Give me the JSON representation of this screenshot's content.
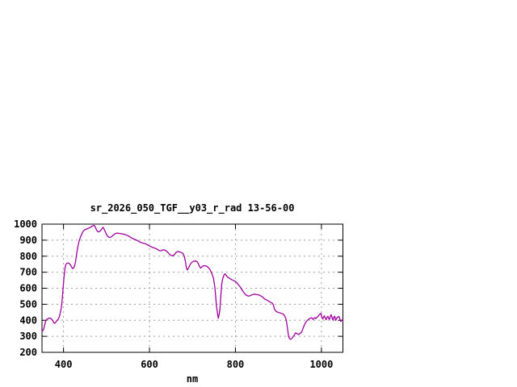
{
  "chart_data": {
    "type": "line",
    "title": "sr_2026_050_TGF__y03_r_rad 13-56-00",
    "xlabel": "nm",
    "ylabel": "",
    "xlim": [
      350,
      1050
    ],
    "ylim": [
      200,
      1000
    ],
    "xticks": [
      400,
      600,
      800,
      1000
    ],
    "yticks": [
      200,
      300,
      400,
      500,
      600,
      700,
      800,
      900,
      1000
    ],
    "grid": true,
    "legend": "none",
    "colors": {
      "line": "#a000a0",
      "grid": "#a0a0a0",
      "axis": "#000000",
      "background": "#ffffff",
      "text": "#000000"
    },
    "series": [
      {
        "name": "sr_2026_050_TGF__y03_r_rad",
        "color": "#a000a0",
        "points": [
          [
            350,
            330
          ],
          [
            352,
            337
          ],
          [
            354,
            345
          ],
          [
            356,
            368
          ],
          [
            358,
            392
          ],
          [
            360,
            403
          ],
          [
            363,
            409
          ],
          [
            366,
            413
          ],
          [
            369,
            414
          ],
          [
            372,
            408
          ],
          [
            375,
            398
          ],
          [
            377,
            386
          ],
          [
            379,
            381
          ],
          [
            381,
            384
          ],
          [
            384,
            396
          ],
          [
            387,
            404
          ],
          [
            390,
            420
          ],
          [
            393,
            452
          ],
          [
            395,
            478
          ],
          [
            397,
            528
          ],
          [
            399,
            600
          ],
          [
            401,
            662
          ],
          [
            403,
            716
          ],
          [
            405,
            746
          ],
          [
            408,
            756
          ],
          [
            411,
            758
          ],
          [
            413,
            755
          ],
          [
            416,
            747
          ],
          [
            419,
            732
          ],
          [
            421,
            723
          ],
          [
            424,
            728
          ],
          [
            426,
            741
          ],
          [
            428,
            764
          ],
          [
            430,
            806
          ],
          [
            433,
            856
          ],
          [
            436,
            892
          ],
          [
            439,
            916
          ],
          [
            442,
            936
          ],
          [
            445,
            952
          ],
          [
            448,
            962
          ],
          [
            451,
            967
          ],
          [
            454,
            970
          ],
          [
            457,
            973
          ],
          [
            460,
            977
          ],
          [
            463,
            981
          ],
          [
            466,
            986
          ],
          [
            469,
            991
          ],
          [
            471,
            992
          ],
          [
            473,
            987
          ],
          [
            476,
            970
          ],
          [
            478,
            958
          ],
          [
            481,
            951
          ],
          [
            484,
            954
          ],
          [
            487,
            963
          ],
          [
            490,
            974
          ],
          [
            492,
            980
          ],
          [
            494,
            972
          ],
          [
            496,
            960
          ],
          [
            498,
            948
          ],
          [
            500,
            935
          ],
          [
            503,
            924
          ],
          [
            506,
            918
          ],
          [
            509,
            917
          ],
          [
            512,
            922
          ],
          [
            515,
            929
          ],
          [
            518,
            937
          ],
          [
            521,
            941
          ],
          [
            524,
            944
          ],
          [
            527,
            943
          ],
          [
            530,
            942
          ],
          [
            534,
            940
          ],
          [
            538,
            938
          ],
          [
            542,
            936
          ],
          [
            546,
            932
          ],
          [
            550,
            928
          ],
          [
            554,
            921
          ],
          [
            558,
            914
          ],
          [
            562,
            909
          ],
          [
            566,
            905
          ],
          [
            570,
            900
          ],
          [
            574,
            895
          ],
          [
            578,
            888
          ],
          [
            582,
            884
          ],
          [
            586,
            881
          ],
          [
            590,
            878
          ],
          [
            594,
            873
          ],
          [
            598,
            866
          ],
          [
            602,
            861
          ],
          [
            606,
            856
          ],
          [
            610,
            852
          ],
          [
            614,
            849
          ],
          [
            618,
            843
          ],
          [
            622,
            836
          ],
          [
            626,
            833
          ],
          [
            630,
            838
          ],
          [
            634,
            840
          ],
          [
            638,
            835
          ],
          [
            642,
            826
          ],
          [
            646,
            814
          ],
          [
            650,
            806
          ],
          [
            654,
            802
          ],
          [
            658,
            810
          ],
          [
            662,
            824
          ],
          [
            666,
            829
          ],
          [
            670,
            827
          ],
          [
            674,
            823
          ],
          [
            678,
            817
          ],
          [
            681,
            800
          ],
          [
            684,
            762
          ],
          [
            686,
            726
          ],
          [
            688,
            714
          ],
          [
            690,
            721
          ],
          [
            693,
            739
          ],
          [
            696,
            754
          ],
          [
            700,
            765
          ],
          [
            704,
            769
          ],
          [
            708,
            770
          ],
          [
            711,
            765
          ],
          [
            714,
            751
          ],
          [
            717,
            733
          ],
          [
            719,
            726
          ],
          [
            722,
            734
          ],
          [
            725,
            740
          ],
          [
            728,
            741
          ],
          [
            731,
            740
          ],
          [
            734,
            736
          ],
          [
            737,
            729
          ],
          [
            740,
            721
          ],
          [
            743,
            704
          ],
          [
            746,
            686
          ],
          [
            749,
            662
          ],
          [
            752,
            608
          ],
          [
            754,
            548
          ],
          [
            756,
            488
          ],
          [
            758,
            448
          ],
          [
            760,
            412
          ],
          [
            762,
            432
          ],
          [
            764,
            472
          ],
          [
            766,
            556
          ],
          [
            768,
            622
          ],
          [
            770,
            656
          ],
          [
            772,
            673
          ],
          [
            774,
            686
          ],
          [
            776,
            690
          ],
          [
            778,
            683
          ],
          [
            780,
            674
          ],
          [
            783,
            667
          ],
          [
            786,
            662
          ],
          [
            790,
            656
          ],
          [
            794,
            650
          ],
          [
            798,
            645
          ],
          [
            801,
            641
          ],
          [
            805,
            628
          ],
          [
            809,
            615
          ],
          [
            813,
            600
          ],
          [
            817,
            583
          ],
          [
            821,
            568
          ],
          [
            825,
            557
          ],
          [
            829,
            551
          ],
          [
            833,
            552
          ],
          [
            837,
            557
          ],
          [
            841,
            561
          ],
          [
            845,
            563
          ],
          [
            849,
            561
          ],
          [
            853,
            559
          ],
          [
            857,
            555
          ],
          [
            861,
            549
          ],
          [
            865,
            540
          ],
          [
            869,
            531
          ],
          [
            873,
            526
          ],
          [
            877,
            520
          ],
          [
            881,
            513
          ],
          [
            885,
            508
          ],
          [
            888,
            498
          ],
          [
            891,
            468
          ],
          [
            894,
            457
          ],
          [
            897,
            452
          ],
          [
            901,
            448
          ],
          [
            905,
            445
          ],
          [
            909,
            441
          ],
          [
            912,
            436
          ],
          [
            915,
            425
          ],
          [
            918,
            402
          ],
          [
            920,
            370
          ],
          [
            922,
            330
          ],
          [
            924,
            296
          ],
          [
            926,
            285
          ],
          [
            928,
            282
          ],
          [
            930,
            284
          ],
          [
            933,
            292
          ],
          [
            936,
            305
          ],
          [
            940,
            322
          ],
          [
            944,
            315
          ],
          [
            947,
            310
          ],
          [
            950,
            318
          ],
          [
            953,
            323
          ],
          [
            956,
            340
          ],
          [
            959,
            362
          ],
          [
            962,
            381
          ],
          [
            965,
            393
          ],
          [
            968,
            402
          ],
          [
            971,
            408
          ],
          [
            974,
            413
          ],
          [
            977,
            416
          ],
          [
            979,
            410
          ],
          [
            981,
            406
          ],
          [
            983,
            413
          ],
          [
            985,
            416
          ],
          [
            987,
            411
          ],
          [
            989,
            417
          ],
          [
            991,
            422
          ],
          [
            993,
            428
          ],
          [
            995,
            434
          ],
          [
            997,
            439
          ],
          [
            999,
            443
          ],
          [
            1001,
            421
          ],
          [
            1003,
            408
          ],
          [
            1005,
            421
          ],
          [
            1007,
            428
          ],
          [
            1009,
            413
          ],
          [
            1011,
            404
          ],
          [
            1013,
            419
          ],
          [
            1015,
            425
          ],
          [
            1017,
            411
          ],
          [
            1019,
            406
          ],
          [
            1021,
            429
          ],
          [
            1023,
            434
          ],
          [
            1025,
            413
          ],
          [
            1027,
            402
          ],
          [
            1029,
            421
          ],
          [
            1031,
            425
          ],
          [
            1033,
            400
          ],
          [
            1035,
            409
          ],
          [
            1037,
            419
          ],
          [
            1039,
            422
          ],
          [
            1041,
            424
          ],
          [
            1043,
            406
          ],
          [
            1045,
            392
          ],
          [
            1047,
            399
          ],
          [
            1049,
            405
          ],
          [
            1050,
            401
          ]
        ]
      }
    ]
  }
}
